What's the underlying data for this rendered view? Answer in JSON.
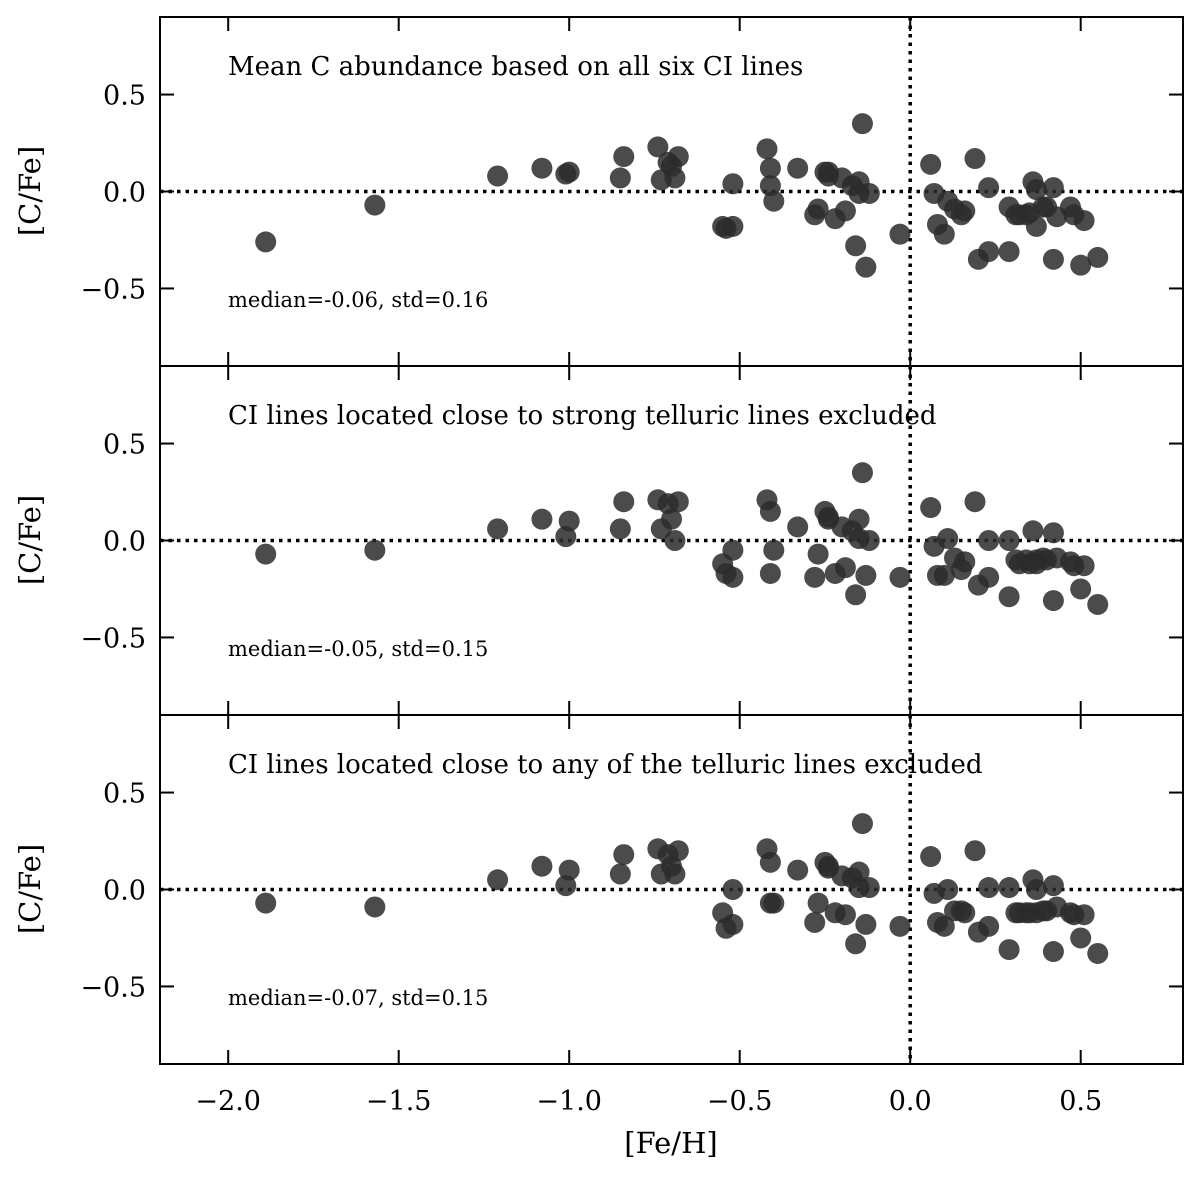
{
  "chart_data": {
    "type": "scatter",
    "xlabel": "[Fe/H]",
    "ylabel": "[C/Fe]",
    "xlim": [
      -2.2,
      0.8
    ],
    "ylim": [
      -0.9,
      0.9
    ],
    "xticks": [
      -2.0,
      -1.5,
      -1.0,
      -0.5,
      0.0,
      0.5
    ],
    "xtick_labels": [
      "−2.0",
      "−1.5",
      "−1.0",
      "−0.5",
      "0.0",
      "0.5"
    ],
    "yticks": [
      -0.5,
      0.0,
      0.5
    ],
    "ytick_labels": [
      "−0.5",
      "0.0",
      "0.5"
    ],
    "reference_lines": {
      "x": 0.0,
      "y": 0.0,
      "style": "dotted"
    },
    "marker_color": "#2b2b2b",
    "panels": [
      {
        "title": "Mean C abundance based on all six CI lines",
        "stats": "median=-0.06, std=0.16",
        "x": [
          -1.89,
          -1.57,
          -1.21,
          -1.08,
          -1.01,
          -1.0,
          -0.85,
          -0.84,
          -0.74,
          -0.73,
          -0.71,
          -0.7,
          -0.69,
          -0.68,
          -0.55,
          -0.54,
          -0.52,
          -0.52,
          -0.42,
          -0.41,
          -0.41,
          -0.4,
          -0.33,
          -0.28,
          -0.27,
          -0.25,
          -0.24,
          -0.24,
          -0.22,
          -0.2,
          -0.19,
          -0.17,
          -0.16,
          -0.15,
          -0.15,
          -0.14,
          -0.13,
          -0.12,
          -0.03,
          0.06,
          0.07,
          0.08,
          0.1,
          0.11,
          0.13,
          0.15,
          0.16,
          0.19,
          0.2,
          0.23,
          0.23,
          0.29,
          0.29,
          0.31,
          0.32,
          0.34,
          0.35,
          0.36,
          0.37,
          0.37,
          0.39,
          0.4,
          0.42,
          0.42,
          0.43,
          0.47,
          0.48,
          0.5,
          0.51,
          0.55
        ],
        "y": [
          -0.26,
          -0.07,
          0.08,
          0.12,
          0.09,
          0.1,
          0.07,
          0.18,
          0.23,
          0.06,
          0.15,
          0.13,
          0.07,
          0.18,
          -0.18,
          -0.19,
          0.04,
          -0.18,
          0.22,
          0.03,
          0.12,
          -0.05,
          0.12,
          -0.12,
          -0.09,
          0.1,
          0.08,
          0.1,
          -0.14,
          0.07,
          -0.1,
          0.03,
          -0.28,
          -0.01,
          0.05,
          0.35,
          -0.39,
          -0.01,
          -0.22,
          0.14,
          -0.01,
          -0.17,
          -0.22,
          -0.05,
          -0.09,
          -0.12,
          -0.1,
          0.17,
          -0.35,
          0.02,
          -0.31,
          -0.31,
          -0.08,
          -0.12,
          -0.12,
          -0.12,
          -0.11,
          0.05,
          0.01,
          -0.18,
          -0.08,
          -0.08,
          0.02,
          -0.35,
          -0.13,
          -0.08,
          -0.12,
          -0.38,
          -0.15,
          -0.34
        ]
      },
      {
        "title": "CI lines located close to strong telluric lines excluded",
        "stats": "median=-0.05, std=0.15",
        "x": [
          -1.89,
          -1.57,
          -1.21,
          -1.08,
          -1.01,
          -1.0,
          -0.85,
          -0.84,
          -0.74,
          -0.73,
          -0.71,
          -0.7,
          -0.69,
          -0.68,
          -0.55,
          -0.54,
          -0.52,
          -0.52,
          -0.42,
          -0.41,
          -0.41,
          -0.4,
          -0.33,
          -0.28,
          -0.27,
          -0.25,
          -0.24,
          -0.24,
          -0.22,
          -0.2,
          -0.19,
          -0.17,
          -0.16,
          -0.15,
          -0.15,
          -0.14,
          -0.13,
          -0.12,
          -0.03,
          0.06,
          0.07,
          0.08,
          0.1,
          0.11,
          0.13,
          0.15,
          0.16,
          0.19,
          0.2,
          0.23,
          0.23,
          0.29,
          0.29,
          0.31,
          0.32,
          0.34,
          0.35,
          0.36,
          0.37,
          0.37,
          0.39,
          0.4,
          0.42,
          0.42,
          0.43,
          0.47,
          0.48,
          0.5,
          0.51,
          0.55
        ],
        "y": [
          -0.07,
          -0.05,
          0.06,
          0.11,
          0.02,
          0.1,
          0.06,
          0.2,
          0.21,
          0.06,
          0.19,
          0.11,
          0.0,
          0.2,
          -0.12,
          -0.17,
          -0.05,
          -0.19,
          0.21,
          -0.17,
          0.15,
          -0.05,
          0.07,
          -0.19,
          -0.07,
          0.15,
          0.11,
          0.12,
          -0.17,
          0.07,
          -0.14,
          0.05,
          -0.28,
          0.01,
          0.11,
          0.35,
          -0.18,
          0.0,
          -0.19,
          0.17,
          -0.03,
          -0.18,
          -0.18,
          0.01,
          -0.09,
          -0.15,
          -0.11,
          0.2,
          -0.23,
          0.0,
          -0.19,
          -0.29,
          0.0,
          -0.1,
          -0.12,
          -0.1,
          -0.12,
          0.05,
          -0.12,
          -0.1,
          -0.09,
          -0.1,
          0.04,
          -0.31,
          -0.09,
          -0.11,
          -0.13,
          -0.25,
          -0.13,
          -0.33
        ]
      },
      {
        "title": "CI lines located close to any of the telluric lines excluded",
        "stats": "median=-0.07, std=0.15",
        "x": [
          -1.89,
          -1.57,
          -1.21,
          -1.08,
          -1.01,
          -1.0,
          -0.85,
          -0.84,
          -0.74,
          -0.73,
          -0.71,
          -0.7,
          -0.69,
          -0.68,
          -0.55,
          -0.54,
          -0.52,
          -0.52,
          -0.42,
          -0.41,
          -0.41,
          -0.4,
          -0.33,
          -0.28,
          -0.27,
          -0.25,
          -0.24,
          -0.24,
          -0.22,
          -0.2,
          -0.19,
          -0.17,
          -0.16,
          -0.15,
          -0.15,
          -0.14,
          -0.13,
          -0.12,
          -0.03,
          0.06,
          0.07,
          0.08,
          0.1,
          0.11,
          0.13,
          0.15,
          0.16,
          0.19,
          0.2,
          0.23,
          0.23,
          0.29,
          0.29,
          0.31,
          0.32,
          0.34,
          0.35,
          0.36,
          0.37,
          0.37,
          0.39,
          0.4,
          0.42,
          0.42,
          0.43,
          0.47,
          0.48,
          0.5,
          0.51,
          0.55
        ],
        "y": [
          -0.07,
          -0.09,
          0.05,
          0.12,
          0.02,
          0.1,
          0.08,
          0.18,
          0.21,
          0.08,
          0.18,
          0.12,
          0.08,
          0.2,
          -0.12,
          -0.2,
          0.0,
          -0.18,
          0.21,
          -0.07,
          0.14,
          -0.07,
          0.1,
          -0.17,
          -0.07,
          0.14,
          0.11,
          0.12,
          -0.12,
          0.07,
          -0.13,
          0.06,
          -0.28,
          0.01,
          0.09,
          0.34,
          -0.18,
          0.01,
          -0.19,
          0.17,
          -0.02,
          -0.17,
          -0.19,
          0.0,
          -0.11,
          -0.11,
          -0.12,
          0.2,
          -0.22,
          0.01,
          -0.19,
          -0.31,
          0.01,
          -0.12,
          -0.12,
          -0.12,
          -0.12,
          0.05,
          0.0,
          -0.12,
          -0.11,
          -0.11,
          0.02,
          -0.32,
          -0.09,
          -0.12,
          -0.13,
          -0.25,
          -0.13,
          -0.33
        ]
      }
    ]
  }
}
